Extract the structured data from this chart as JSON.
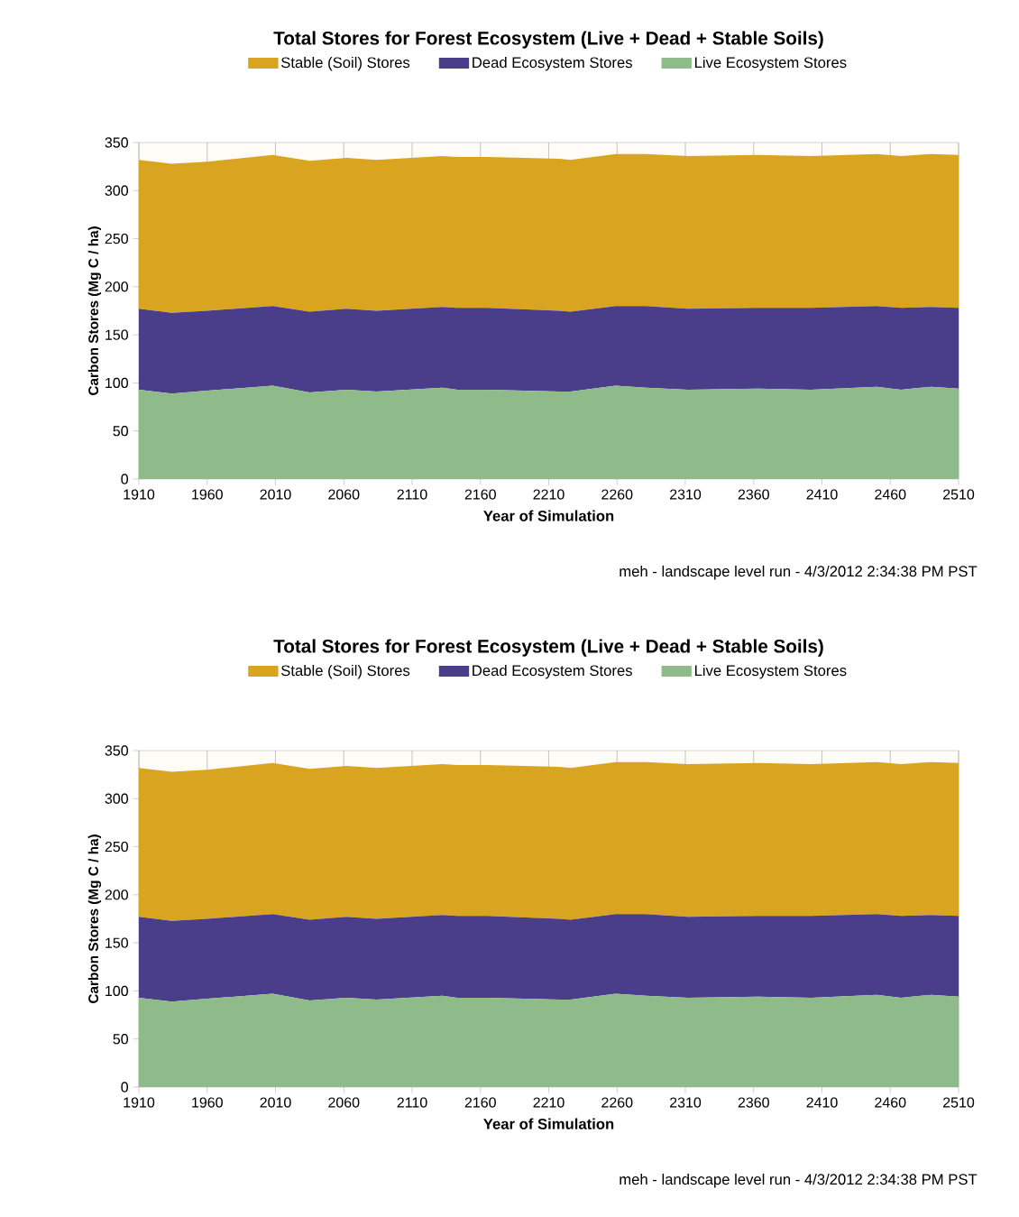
{
  "chart_data": [
    {
      "type": "area",
      "stacked": true,
      "title": "Total Stores for Forest Ecosystem (Live + Dead + Stable Soils)",
      "xlabel": "Year of Simulation",
      "ylabel": "Carbon Stores (Mg C / ha)",
      "annotations": [
        "meh - landscape level run - 4/3/2012 2:34:38 PM PST"
      ],
      "x": [
        1910,
        1934,
        1960,
        2008,
        2035,
        2062,
        2084,
        2132,
        2143,
        2165,
        2218,
        2226,
        2259,
        2281,
        2312,
        2363,
        2402,
        2450,
        2468,
        2490,
        2510
      ],
      "series": [
        {
          "name": "Live Ecosystem Stores",
          "color": "#8fbb8a",
          "values": [
            93,
            89,
            92,
            97,
            90,
            93,
            91,
            95,
            93,
            93,
            91,
            91,
            97,
            95,
            93,
            94,
            93,
            96,
            93,
            96,
            94
          ]
        },
        {
          "name": "Dead Ecosystem Stores",
          "color": "#4a3d8a",
          "values": [
            84,
            84,
            83,
            83,
            84,
            84,
            84,
            84,
            85,
            85,
            84,
            83,
            83,
            85,
            84,
            84,
            85,
            84,
            85,
            83,
            84
          ]
        },
        {
          "name": "Stable (Soil) Stores",
          "color": "#d9a521",
          "values": [
            155,
            155,
            155,
            157,
            157,
            157,
            157,
            157,
            157,
            157,
            158,
            158,
            158,
            158,
            159,
            159,
            158,
            158,
            158,
            159,
            159
          ]
        }
      ],
      "xlim": [
        1910,
        2510
      ],
      "xticks": [
        1910,
        1960,
        2010,
        2060,
        2110,
        2160,
        2210,
        2260,
        2310,
        2360,
        2410,
        2460,
        2510
      ],
      "ylim": [
        0,
        350
      ],
      "yticks": [
        0,
        50,
        100,
        150,
        200,
        250,
        300,
        350
      ],
      "grid": "x",
      "legend": "top"
    },
    {
      "type": "area",
      "stacked": true,
      "title": "Total Stores for Forest Ecosystem (Live + Dead + Stable Soils)",
      "xlabel": "Year of Simulation",
      "ylabel": "Carbon Stores (Mg C / ha)",
      "annotations": [
        "meh - landscape level run - 4/3/2012 2:34:38 PM PST"
      ],
      "x": [
        1910,
        1934,
        1960,
        2008,
        2035,
        2062,
        2084,
        2132,
        2143,
        2165,
        2218,
        2226,
        2259,
        2281,
        2312,
        2363,
        2402,
        2450,
        2468,
        2490,
        2510
      ],
      "series": [
        {
          "name": "Live Ecosystem Stores",
          "color": "#8fbb8a",
          "values": [
            93,
            89,
            92,
            97,
            90,
            93,
            91,
            95,
            93,
            93,
            91,
            91,
            97,
            95,
            93,
            94,
            93,
            96,
            93,
            96,
            94
          ]
        },
        {
          "name": "Dead Ecosystem Stores",
          "color": "#4a3d8a",
          "values": [
            84,
            84,
            83,
            83,
            84,
            84,
            84,
            84,
            85,
            85,
            84,
            83,
            83,
            85,
            84,
            84,
            85,
            84,
            85,
            83,
            84
          ]
        },
        {
          "name": "Stable (Soil) Stores",
          "color": "#d9a521",
          "values": [
            155,
            155,
            155,
            157,
            157,
            157,
            157,
            157,
            157,
            157,
            158,
            158,
            158,
            158,
            159,
            159,
            158,
            158,
            158,
            159,
            159
          ]
        }
      ],
      "xlim": [
        1910,
        2510
      ],
      "xticks": [
        1910,
        1960,
        2010,
        2060,
        2110,
        2160,
        2210,
        2260,
        2310,
        2360,
        2410,
        2460,
        2510
      ],
      "ylim": [
        0,
        350
      ],
      "yticks": [
        0,
        50,
        100,
        150,
        200,
        250,
        300,
        350
      ],
      "grid": "x",
      "legend": "top"
    }
  ]
}
